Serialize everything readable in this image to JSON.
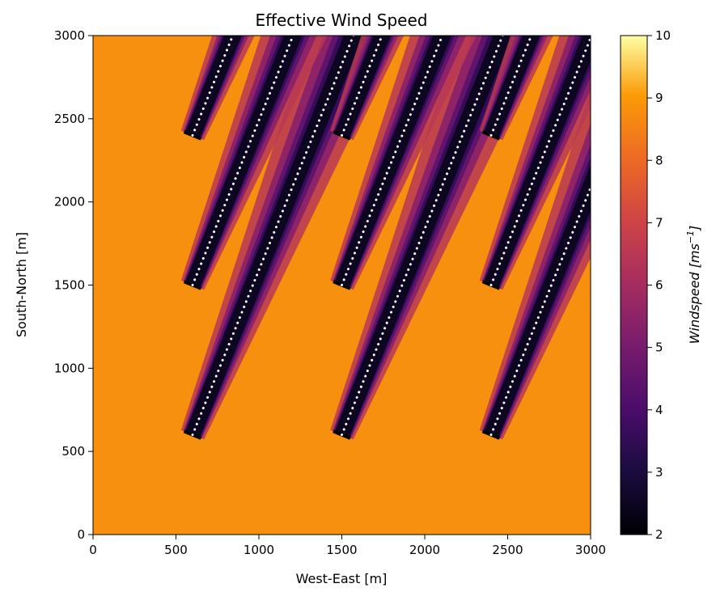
{
  "chart_data": {
    "type": "heatmap",
    "title": "Effective Wind Speed",
    "xlabel": "West-East [m]",
    "ylabel": "South-North [m]",
    "xlim": [
      0,
      3000
    ],
    "ylim": [
      0,
      3000
    ],
    "xticks": [
      0,
      500,
      1000,
      1500,
      2000,
      2500,
      3000
    ],
    "yticks": [
      0,
      500,
      1000,
      1500,
      2000,
      2500,
      3000
    ],
    "colorbar": {
      "label_prefix": "Windspeed [",
      "label_unit": "ms",
      "label_exp": "−1",
      "label_suffix": "]",
      "range": [
        2,
        10
      ],
      "ticks": [
        2,
        3,
        4,
        5,
        6,
        7,
        8,
        9,
        10
      ],
      "colormap": "inferno"
    },
    "free_stream_speed": 8.0,
    "wake_speed_min": 2.5,
    "turbines": [
      {
        "x": 600,
        "y": 600
      },
      {
        "x": 1500,
        "y": 600
      },
      {
        "x": 2400,
        "y": 600
      },
      {
        "x": 600,
        "y": 1500
      },
      {
        "x": 1500,
        "y": 1500
      },
      {
        "x": 2400,
        "y": 1500
      },
      {
        "x": 600,
        "y": 2400
      },
      {
        "x": 2400,
        "y": 2400
      },
      {
        "x": 1500,
        "y": 2400
      }
    ],
    "wake_direction_deg_from_north": 22,
    "wake_markers": "white dotted centerlines"
  }
}
